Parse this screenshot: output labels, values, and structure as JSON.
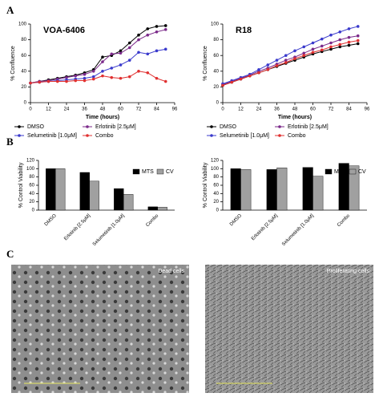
{
  "panels": [
    "A",
    "B",
    "C"
  ],
  "chart_data": [
    {
      "type": "line",
      "title": "VOA-6406",
      "xlabel": "Time (hours)",
      "ylabel": "% Confluence",
      "x": [
        0,
        6,
        12,
        18,
        24,
        30,
        36,
        42,
        48,
        54,
        60,
        66,
        72,
        78,
        84,
        90
      ],
      "xlim": [
        0,
        96
      ],
      "xticks": [
        0,
        12,
        24,
        36,
        48,
        60,
        72,
        84,
        96
      ],
      "ylim": [
        0,
        100
      ],
      "yticks": [
        0,
        20,
        40,
        60,
        80,
        100
      ],
      "series": [
        {
          "name": "DMSO",
          "color": "#000000",
          "values": [
            25,
            27,
            29,
            31,
            33,
            35,
            38,
            42,
            58,
            60,
            66,
            76,
            86,
            94,
            97,
            98
          ]
        },
        {
          "name": "Erlotinib [2.5μM]",
          "color": "#7b2a8a",
          "values": [
            25,
            27,
            28,
            30,
            32,
            34,
            36,
            40,
            52,
            62,
            63,
            70,
            80,
            86,
            90,
            93
          ]
        },
        {
          "name": "Selumetinib [1.0μM]",
          "color": "#3a3acc",
          "values": [
            25,
            26,
            27,
            28,
            29,
            30,
            31,
            33,
            40,
            44,
            48,
            54,
            64,
            62,
            66,
            68
          ]
        },
        {
          "name": "Combo",
          "color": "#e03030",
          "values": [
            25,
            26,
            27,
            27,
            27,
            28,
            28,
            30,
            34,
            32,
            31,
            33,
            40,
            38,
            31,
            27
          ]
        }
      ]
    },
    {
      "type": "line",
      "title": "R18",
      "xlabel": "Time (hours)",
      "ylabel": "% Confluence",
      "x": [
        0,
        6,
        12,
        18,
        24,
        30,
        36,
        42,
        48,
        54,
        60,
        66,
        72,
        78,
        84,
        90
      ],
      "xlim": [
        0,
        96
      ],
      "xticks": [
        0,
        12,
        24,
        36,
        48,
        60,
        72,
        84,
        96
      ],
      "ylim": [
        0,
        100
      ],
      "yticks": [
        0,
        20,
        40,
        60,
        80,
        100
      ],
      "series": [
        {
          "name": "DMSO",
          "color": "#000000",
          "values": [
            22,
            26,
            30,
            34,
            38,
            42,
            46,
            50,
            54,
            58,
            62,
            65,
            68,
            71,
            73,
            75
          ]
        },
        {
          "name": "Erlotinib [2.5μM]",
          "color": "#7b2a8a",
          "values": [
            23,
            27,
            31,
            35,
            40,
            44,
            49,
            54,
            58,
            63,
            68,
            72,
            76,
            80,
            83,
            85
          ]
        },
        {
          "name": "Selumetinib [1.0μM]",
          "color": "#3a3acc",
          "values": [
            24,
            28,
            32,
            36,
            42,
            48,
            54,
            60,
            66,
            71,
            76,
            81,
            86,
            90,
            94,
            97
          ]
        },
        {
          "name": "Combo",
          "color": "#e03030",
          "values": [
            22,
            26,
            30,
            34,
            38,
            42,
            47,
            51,
            56,
            60,
            64,
            67,
            71,
            74,
            77,
            79
          ]
        }
      ]
    },
    {
      "type": "bar",
      "ylabel": "% Control Viability",
      "categories": [
        "DMSO",
        "Erlotinib [2.5μM]",
        "Selumetinib [1.0μM]",
        "Combo"
      ],
      "ylim": [
        0,
        120
      ],
      "yticks": [
        0,
        20,
        40,
        60,
        80,
        100,
        120
      ],
      "series": [
        {
          "name": "MTS",
          "color": "#000000",
          "values": [
            100,
            91,
            52,
            8
          ]
        },
        {
          "name": "CV",
          "color": "#a0a0a0",
          "values": [
            100,
            70,
            38,
            7
          ]
        }
      ]
    },
    {
      "type": "bar",
      "ylabel": "% Control Viability",
      "categories": [
        "DMSO",
        "Erlotinib [2.5μM]",
        "Selumetinib [1.0μM]",
        "Combo"
      ],
      "ylim": [
        0,
        120
      ],
      "yticks": [
        0,
        20,
        40,
        60,
        80,
        100,
        120
      ],
      "series": [
        {
          "name": "MTS",
          "color": "#000000",
          "values": [
            100,
            98,
            103,
            113
          ]
        },
        {
          "name": "CV",
          "color": "#a0a0a0",
          "values": [
            98,
            102,
            82,
            107
          ]
        }
      ]
    }
  ],
  "images": [
    {
      "caption": "Dead cells"
    },
    {
      "caption": "Proliferating cells"
    }
  ]
}
